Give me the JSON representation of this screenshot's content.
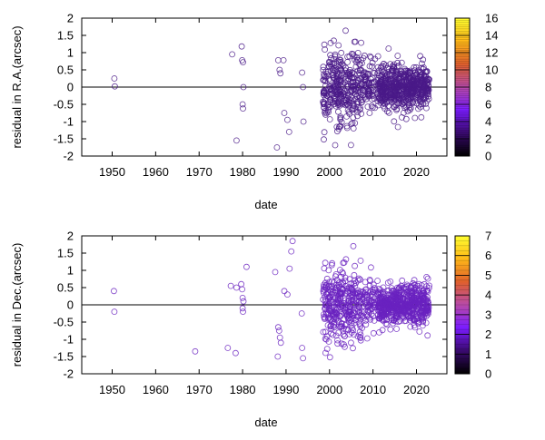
{
  "chart_data": [
    {
      "type": "scatter",
      "xlabel": "date",
      "ylabel": "residual in R.A.(arcsec)",
      "xlim": [
        1943,
        2027
      ],
      "ylim": [
        -2,
        2
      ],
      "xticks": [
        "1950",
        "1960",
        "1970",
        "1980",
        "1990",
        "2000",
        "2010",
        "2020"
      ],
      "yticks": [
        "-2",
        "-1.5",
        "-1",
        "-0.5",
        "0",
        "0.5",
        "1",
        "1.5",
        "2"
      ],
      "colorbar": {
        "min": 0,
        "max": 16,
        "ticks": [
          "0",
          "2",
          "4",
          "6",
          "8",
          "10",
          "12",
          "14",
          "16"
        ],
        "palette": [
          "#000000",
          "#3a0a70",
          "#7a1cff",
          "#b84aa8",
          "#e0602c",
          "#ffb818",
          "#ffff30"
        ]
      },
      "zero_line": true,
      "marker": "open-circle",
      "point_color": "#4a1a88",
      "points": [
        [
          1950.5,
          0.25
        ],
        [
          1950.6,
          0.02
        ],
        [
          1977.6,
          0.95
        ],
        [
          1978.6,
          -1.55
        ],
        [
          1979.8,
          1.18
        ],
        [
          1979.9,
          0.78
        ],
        [
          1980.1,
          0.72
        ],
        [
          1980.2,
          0.0
        ],
        [
          1980.0,
          -0.5
        ],
        [
          1980.1,
          -0.62
        ],
        [
          1987.9,
          -1.75
        ],
        [
          1988.2,
          0.78
        ],
        [
          1988.5,
          0.5
        ],
        [
          1988.7,
          0.4
        ],
        [
          1989.4,
          0.78
        ],
        [
          1989.6,
          -0.75
        ],
        [
          1990.3,
          -0.95
        ],
        [
          1990.7,
          -1.3
        ],
        [
          1993.7,
          0.42
        ],
        [
          1993.9,
          0.0
        ],
        [
          1994.0,
          -1.0
        ]
      ],
      "dense_regions": [
        {
          "x_range": [
            1998.5,
            2007.5
          ],
          "y_sd": 0.55,
          "count": 340
        },
        {
          "x_range": [
            2007.5,
            2010.5
          ],
          "y_sd": 0.35,
          "count": 70
        },
        {
          "x_range": [
            2011.0,
            2018.5
          ],
          "y_sd": 0.32,
          "count": 380
        },
        {
          "x_range": [
            2018.5,
            2023.0
          ],
          "y_sd": 0.3,
          "count": 220
        }
      ]
    },
    {
      "type": "scatter",
      "xlabel": "date",
      "ylabel": "residual in Dec.(arcsec)",
      "xlim": [
        1943,
        2027
      ],
      "ylim": [
        -2,
        2
      ],
      "xticks": [
        "1950",
        "1960",
        "1970",
        "1980",
        "1990",
        "2000",
        "2010",
        "2020"
      ],
      "yticks": [
        "-2",
        "-1.5",
        "-1",
        "-0.5",
        "0",
        "0.5",
        "1",
        "1.5",
        "2"
      ],
      "colorbar": {
        "min": 0,
        "max": 7,
        "ticks": [
          "0",
          "1",
          "2",
          "3",
          "4",
          "5",
          "6",
          "7"
        ],
        "palette": [
          "#000000",
          "#3a0a70",
          "#7a1cff",
          "#b84aa8",
          "#e0602c",
          "#ffb818",
          "#ffff30"
        ]
      },
      "zero_line": true,
      "marker": "open-circle",
      "point_color": "#6a22c0",
      "points": [
        [
          1950.4,
          0.4
        ],
        [
          1950.5,
          -0.2
        ],
        [
          1969.1,
          -1.35
        ],
        [
          1976.6,
          -1.25
        ],
        [
          1977.3,
          0.55
        ],
        [
          1978.4,
          -1.4
        ],
        [
          1978.6,
          0.5
        ],
        [
          1979.7,
          0.6
        ],
        [
          1979.9,
          0.45
        ],
        [
          1980.0,
          0.2
        ],
        [
          1980.2,
          0.1
        ],
        [
          1980.0,
          -0.1
        ],
        [
          1980.1,
          -0.2
        ],
        [
          1980.9,
          1.1
        ],
        [
          1987.5,
          0.95
        ],
        [
          1988.1,
          -1.5
        ],
        [
          1988.2,
          -0.65
        ],
        [
          1988.4,
          -0.75
        ],
        [
          1988.6,
          -0.95
        ],
        [
          1988.8,
          -1.1
        ],
        [
          1989.6,
          0.4
        ],
        [
          1990.3,
          0.3
        ],
        [
          1990.8,
          1.05
        ],
        [
          1991.2,
          1.55
        ],
        [
          1991.5,
          1.85
        ],
        [
          1993.6,
          -0.25
        ],
        [
          1993.7,
          -1.25
        ],
        [
          1993.9,
          -1.55
        ]
      ],
      "dense_regions": [
        {
          "x_range": [
            1998.5,
            2007.5
          ],
          "y_sd": 0.55,
          "count": 340
        },
        {
          "x_range": [
            2007.5,
            2010.5
          ],
          "y_sd": 0.35,
          "count": 70
        },
        {
          "x_range": [
            2011.0,
            2018.5
          ],
          "y_sd": 0.3,
          "count": 380
        },
        {
          "x_range": [
            2018.5,
            2023.0
          ],
          "y_sd": 0.3,
          "count": 220
        }
      ]
    }
  ]
}
